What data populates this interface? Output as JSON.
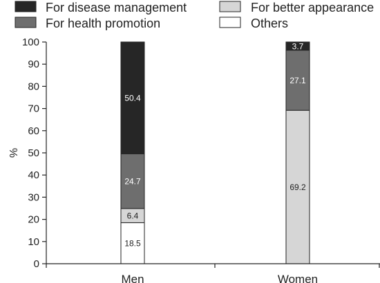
{
  "chart_data": {
    "type": "bar",
    "stacked": true,
    "categories": [
      "Men",
      "Women"
    ],
    "ylabel": "%",
    "ylim": [
      0,
      100
    ],
    "yticks": [
      0,
      10,
      20,
      30,
      40,
      50,
      60,
      70,
      80,
      90,
      100
    ],
    "series": [
      {
        "name": "Others",
        "color": "#ffffff",
        "values": [
          18.5,
          0
        ],
        "labels": [
          "18.5",
          ""
        ]
      },
      {
        "name": "For better appearance",
        "color": "#d6d6d6",
        "values": [
          6.4,
          69.2
        ],
        "labels": [
          "6.4",
          "69.2"
        ]
      },
      {
        "name": "For health promotion",
        "color": "#6e6e6e",
        "values": [
          24.7,
          27.1
        ],
        "labels": [
          "24.7",
          "27.1"
        ]
      },
      {
        "name": "For disease management",
        "color": "#262626",
        "values": [
          50.4,
          3.7
        ],
        "labels": [
          "50.4",
          "3.7"
        ]
      }
    ],
    "legend": {
      "placement": "top",
      "order": [
        "For disease management",
        "For better appearance",
        "For health promotion",
        "Others"
      ]
    },
    "grid": false
  }
}
